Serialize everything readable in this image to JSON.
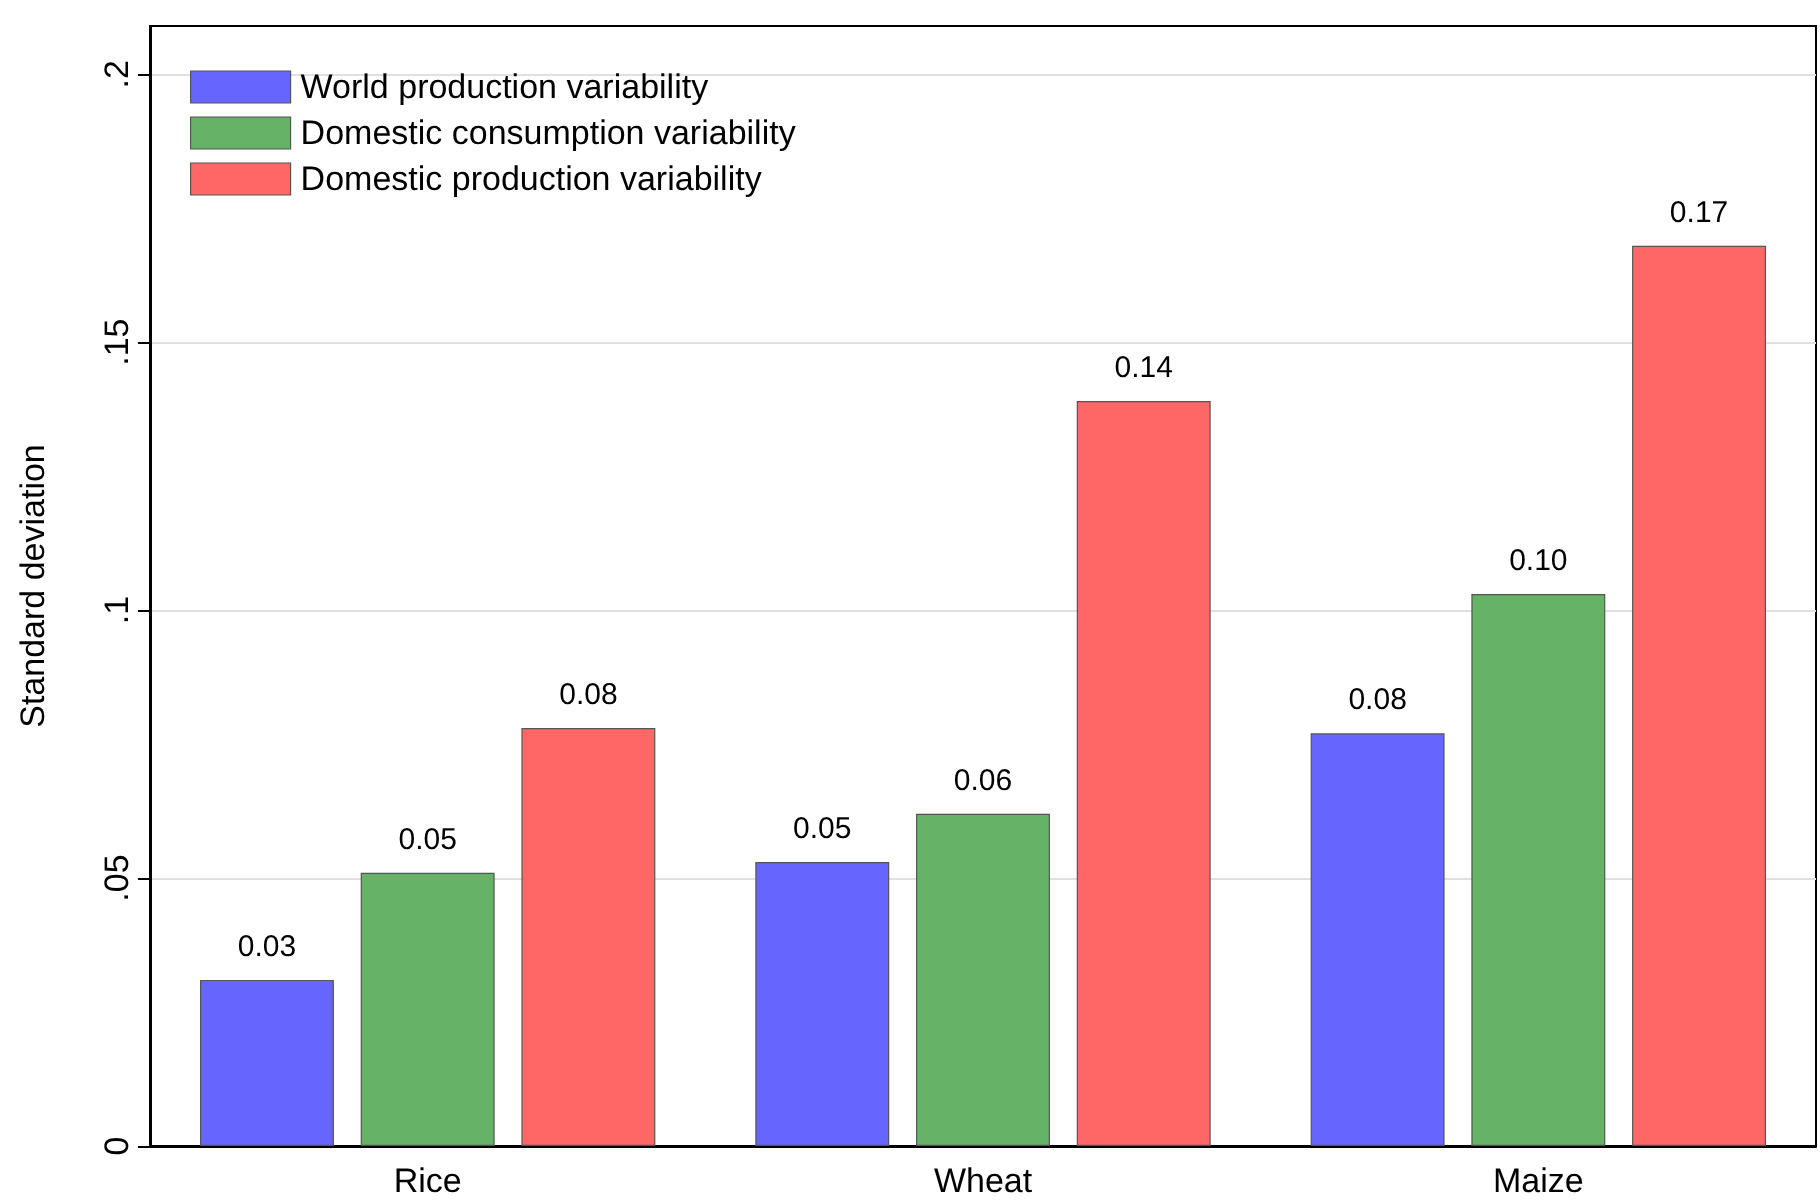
{
  "chart_data": {
    "type": "bar",
    "ylabel": "Standard deviation",
    "categories": [
      "Rice",
      "Wheat",
      "Maize"
    ],
    "series": [
      {
        "name": "World production variability",
        "color": "#6666ff",
        "values": [
          0.031,
          0.053,
          0.077
        ],
        "value_labels": [
          "0.03",
          "0.05",
          "0.08"
        ]
      },
      {
        "name": "Domestic consumption variability",
        "color": "#66b266",
        "values": [
          0.051,
          0.062,
          0.103
        ],
        "value_labels": [
          "0.05",
          "0.06",
          "0.10"
        ]
      },
      {
        "name": "Domestic production variability",
        "color": "#ff6666",
        "values": [
          0.078,
          0.139,
          0.168
        ],
        "value_labels": [
          "0.08",
          "0.14",
          "0.17"
        ]
      }
    ],
    "ylim": [
      0,
      0.209
    ],
    "yticks": [
      {
        "value": 0,
        "label": "0"
      },
      {
        "value": 0.05,
        "label": ".05"
      },
      {
        "value": 0.1,
        "label": ".1"
      },
      {
        "value": 0.15,
        "label": ".15"
      },
      {
        "value": 0.2,
        "label": ".2"
      }
    ],
    "grid": "y",
    "legend": "top left"
  }
}
